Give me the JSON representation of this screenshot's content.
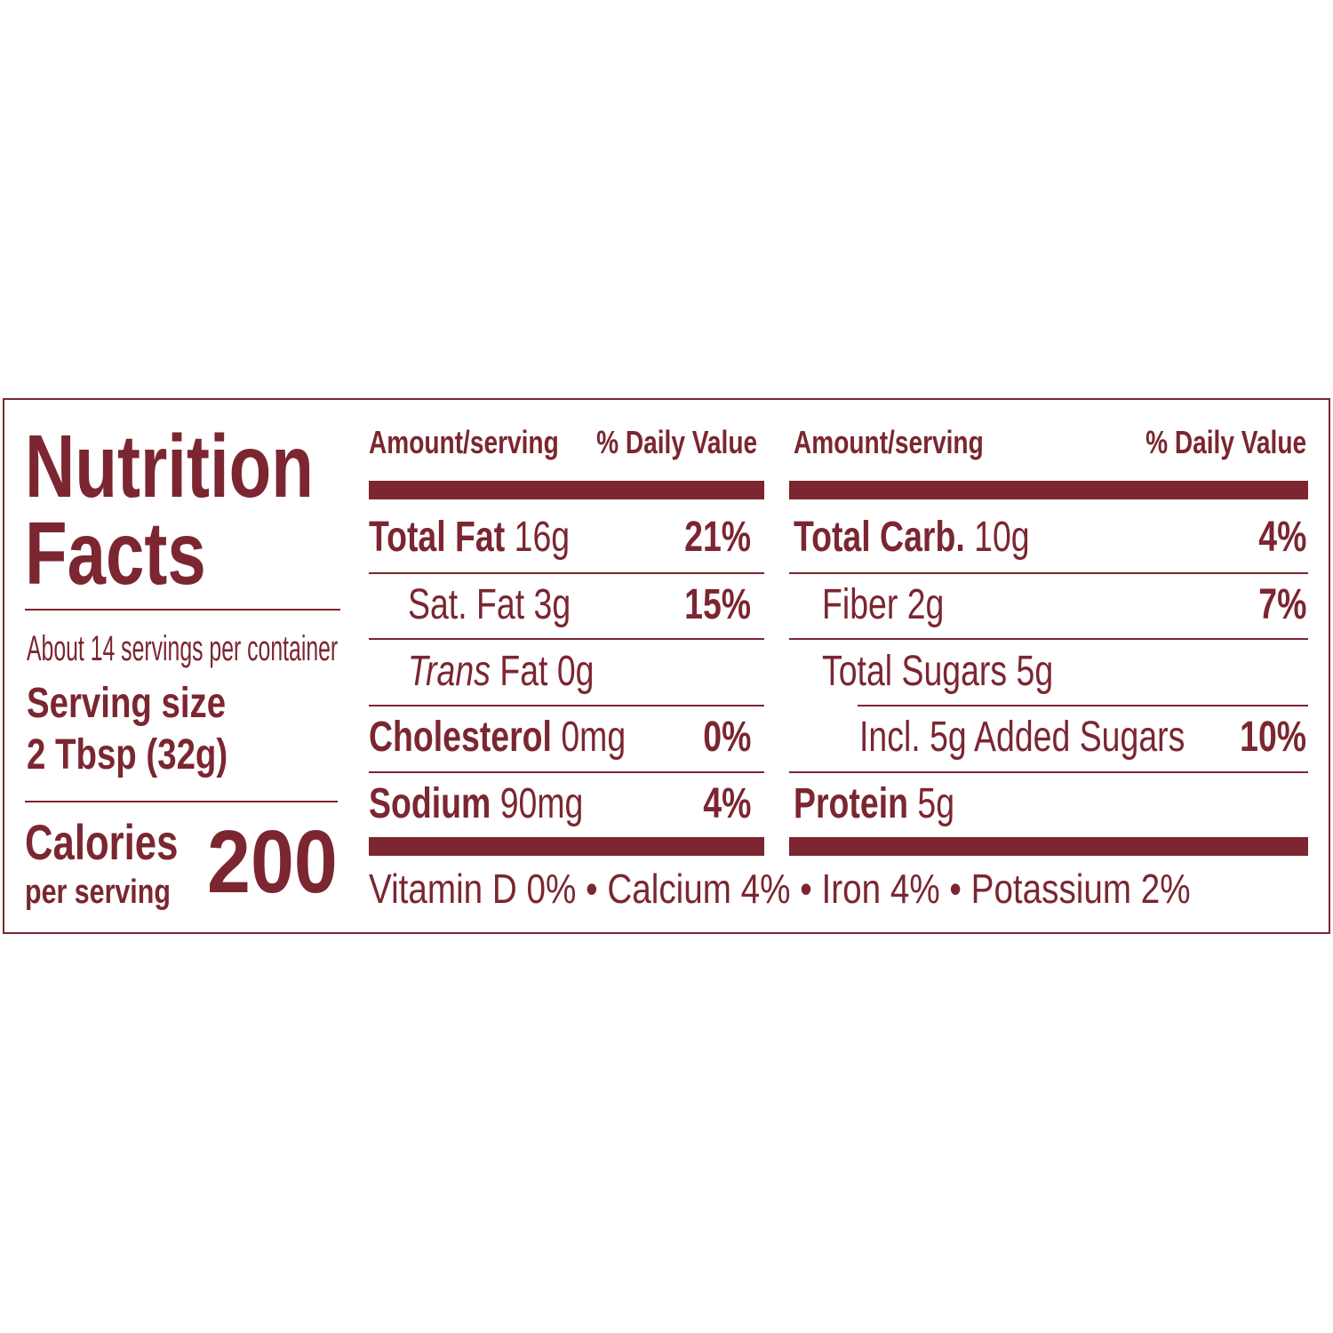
{
  "title": "Nutrition Facts",
  "servings_per_container": "About 14 servings per container",
  "serving_size_label": "Serving size",
  "serving_size": "2 Tbsp (32g)",
  "calories_label": "Calories",
  "calories_sublabel": "per serving",
  "calories": 200,
  "columns": [
    {
      "header": {
        "amount": "Amount/serving",
        "daily_value": "% Daily Value"
      },
      "rows": [
        {
          "name": "Total Fat",
          "amount": "16g",
          "daily_value": "21%",
          "level": 0
        },
        {
          "name": "Sat. Fat",
          "amount": "3g",
          "daily_value": "15%",
          "level": 1
        },
        {
          "name_italic": "Trans",
          "name": "Fat",
          "amount": "0g",
          "level": 1
        },
        {
          "name": "Cholesterol",
          "amount": "0mg",
          "daily_value": "0%",
          "level": 0
        },
        {
          "name": "Sodium",
          "amount": "90mg",
          "daily_value": "4%",
          "level": 0
        }
      ]
    },
    {
      "header": {
        "amount": "Amount/serving",
        "daily_value": "% Daily Value"
      },
      "rows": [
        {
          "name": "Total Carb.",
          "amount": "10g",
          "daily_value": "4%",
          "level": 0
        },
        {
          "name": "Fiber",
          "amount": "2g",
          "daily_value": "7%",
          "level": 1
        },
        {
          "name": "Total Sugars",
          "amount": "5g",
          "level": 1
        },
        {
          "name": "Incl. 5g Added Sugars",
          "daily_value": "10%",
          "level": 2
        },
        {
          "name": "Protein",
          "amount": "5g",
          "level": 0
        }
      ]
    }
  ],
  "footer": "Vitamin D 0% • Calcium 4% • Iron 4% • Potassium 2%"
}
